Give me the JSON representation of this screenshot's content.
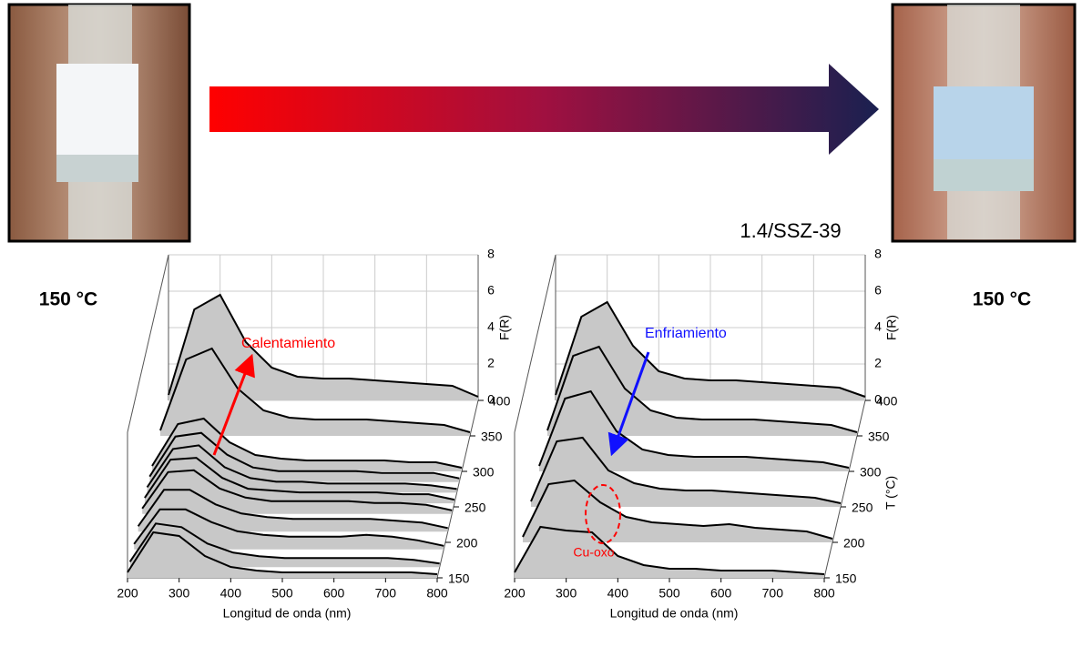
{
  "labels": {
    "left_temp": "150 °C",
    "right_temp": "150 °C",
    "sample": "1.4/SSZ-39"
  },
  "chart_data": [
    {
      "type": "waterfall",
      "xlabel": "Longitud de onda (nm)",
      "ylabel": "F(R)",
      "annotation": "Calentamiento",
      "color": "#c8c8c8",
      "x": [
        200,
        250,
        300,
        350,
        400,
        450,
        500,
        550,
        600,
        650,
        700,
        750,
        800
      ],
      "xlim": [
        200,
        800
      ],
      "xticks": [
        200,
        300,
        400,
        500,
        600,
        700,
        800
      ],
      "ylim": [
        0,
        8
      ],
      "yticks": [
        0,
        2,
        4,
        6,
        8
      ],
      "zlim": [
        150,
        400
      ],
      "zticks": [
        150,
        200,
        250,
        300,
        350,
        400
      ],
      "series": [
        {
          "z": 400,
          "values": [
            0.3,
            5.0,
            5.8,
            3.2,
            1.8,
            1.3,
            1.2,
            1.2,
            1.1,
            1.0,
            0.9,
            0.8,
            0.2
          ]
        },
        {
          "z": 350,
          "values": [
            0.3,
            4.2,
            4.8,
            2.6,
            1.4,
            1.0,
            0.9,
            0.9,
            0.9,
            0.8,
            0.7,
            0.6,
            0.2
          ]
        },
        {
          "z": 300,
          "values": [
            0.3,
            2.6,
            2.9,
            1.6,
            0.9,
            0.7,
            0.6,
            0.6,
            0.6,
            0.6,
            0.5,
            0.5,
            0.2
          ]
        },
        {
          "z": 285,
          "values": [
            0.3,
            2.5,
            2.7,
            1.5,
            0.8,
            0.6,
            0.6,
            0.6,
            0.6,
            0.5,
            0.5,
            0.5,
            0.2
          ]
        },
        {
          "z": 270,
          "values": [
            0.3,
            2.4,
            2.6,
            1.4,
            0.8,
            0.6,
            0.6,
            0.5,
            0.5,
            0.5,
            0.5,
            0.4,
            0.2
          ]
        },
        {
          "z": 255,
          "values": [
            0.3,
            2.4,
            2.5,
            1.4,
            0.8,
            0.7,
            0.6,
            0.6,
            0.6,
            0.6,
            0.5,
            0.5,
            0.2
          ]
        },
        {
          "z": 240,
          "values": [
            0.3,
            2.3,
            2.4,
            1.4,
            0.9,
            0.7,
            0.7,
            0.7,
            0.7,
            0.6,
            0.6,
            0.5,
            0.2
          ]
        },
        {
          "z": 215,
          "values": [
            0.3,
            2.3,
            2.3,
            1.5,
            1.0,
            0.8,
            0.7,
            0.7,
            0.7,
            0.7,
            0.6,
            0.5,
            0.2
          ]
        },
        {
          "z": 190,
          "values": [
            0.3,
            2.2,
            2.2,
            1.5,
            1.0,
            0.8,
            0.7,
            0.7,
            0.7,
            0.8,
            0.7,
            0.5,
            0.2
          ]
        },
        {
          "z": 165,
          "values": [
            0.3,
            2.4,
            2.2,
            1.3,
            0.8,
            0.6,
            0.5,
            0.5,
            0.5,
            0.5,
            0.5,
            0.4,
            0.2
          ]
        },
        {
          "z": 150,
          "values": [
            0.3,
            2.5,
            2.3,
            1.2,
            0.6,
            0.4,
            0.3,
            0.3,
            0.3,
            0.3,
            0.3,
            0.3,
            0.2
          ]
        }
      ]
    },
    {
      "type": "waterfall",
      "xlabel": "Longitud de onda (nm)",
      "ylabel": "F(R)",
      "zlabel": "T (°C)",
      "annotation": "Enfriamiento",
      "note": "Cu-oxo",
      "color": "#c8c8c8",
      "x": [
        200,
        250,
        300,
        350,
        400,
        450,
        500,
        550,
        600,
        650,
        700,
        750,
        800
      ],
      "xlim": [
        200,
        800
      ],
      "xticks": [
        200,
        300,
        400,
        500,
        600,
        700,
        800
      ],
      "ylim": [
        0,
        8
      ],
      "yticks": [
        0,
        2,
        4,
        6,
        8
      ],
      "zlim": [
        150,
        400
      ],
      "zticks": [
        150,
        200,
        250,
        300,
        350,
        400
      ],
      "series": [
        {
          "z": 400,
          "values": [
            0.3,
            4.6,
            5.4,
            3.0,
            1.6,
            1.2,
            1.1,
            1.1,
            1.0,
            0.9,
            0.8,
            0.7,
            0.2
          ]
        },
        {
          "z": 350,
          "values": [
            0.3,
            4.4,
            4.9,
            2.6,
            1.4,
            1.0,
            0.9,
            0.9,
            0.9,
            0.8,
            0.7,
            0.6,
            0.2
          ]
        },
        {
          "z": 300,
          "values": [
            0.3,
            4.0,
            4.4,
            2.2,
            1.2,
            0.9,
            0.8,
            0.8,
            0.8,
            0.7,
            0.6,
            0.5,
            0.2
          ]
        },
        {
          "z": 250,
          "values": [
            0.3,
            3.6,
            3.8,
            2.0,
            1.3,
            1.0,
            0.9,
            0.9,
            0.8,
            0.7,
            0.6,
            0.5,
            0.2
          ]
        },
        {
          "z": 200,
          "values": [
            0.3,
            3.2,
            3.4,
            2.2,
            1.4,
            1.1,
            1.0,
            0.9,
            1.0,
            0.8,
            0.7,
            0.6,
            0.2
          ]
        },
        {
          "z": 150,
          "values": [
            0.3,
            2.8,
            2.6,
            2.5,
            1.2,
            0.7,
            0.5,
            0.5,
            0.4,
            0.4,
            0.4,
            0.3,
            0.2
          ]
        }
      ]
    }
  ]
}
